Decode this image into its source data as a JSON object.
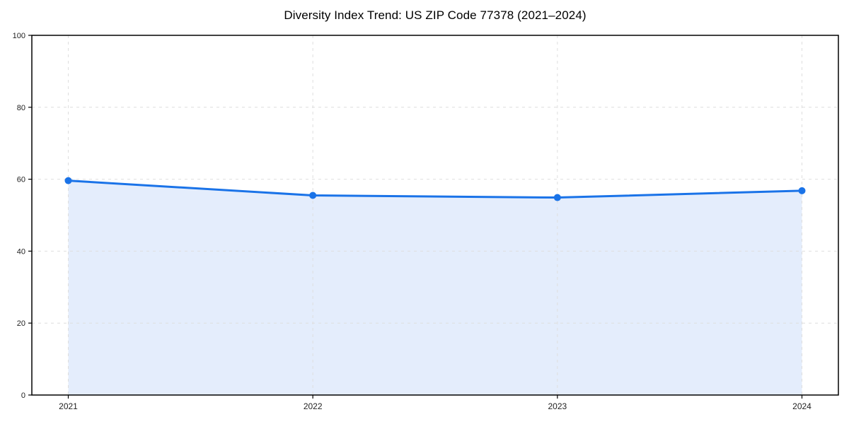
{
  "chart_data": {
    "type": "area",
    "title": "Diversity Index Trend: US ZIP Code 77378 (2021–2024)",
    "categories": [
      "2021",
      "2022",
      "2023",
      "2024"
    ],
    "series": [
      {
        "name": "Diversity Index",
        "values": [
          59.6,
          55.5,
          54.9,
          56.8
        ]
      }
    ],
    "xlabel": "",
    "ylabel": "",
    "ylim": [
      0,
      100
    ],
    "yticks": [
      0,
      20,
      40,
      60,
      80,
      100
    ],
    "grid": "dashed, horizontal and vertical",
    "legend": "none",
    "colors": {
      "line": "#1a73e8",
      "marker": "#1a73e8",
      "fill": "#e4edfc",
      "grid": "#dedede",
      "axis": "#000000",
      "tick_label": "#222222",
      "title": "#000000",
      "background": "#ffffff"
    }
  }
}
